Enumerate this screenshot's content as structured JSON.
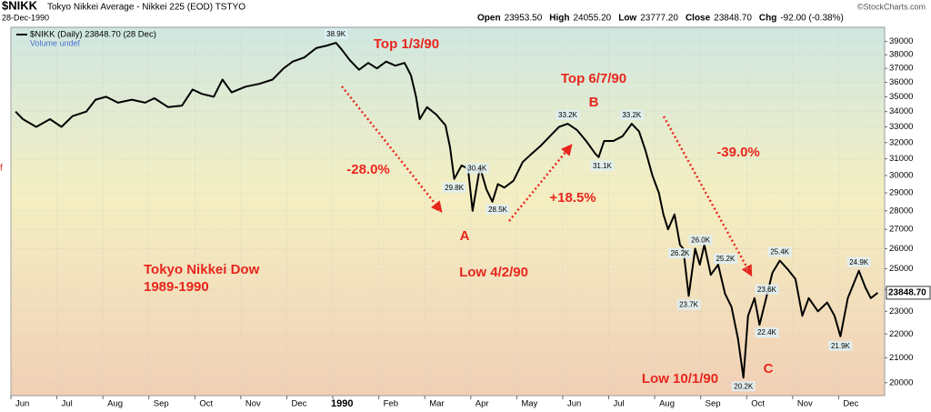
{
  "header": {
    "symbol": "$NIKK",
    "description": "Tokyo Nikkei Average - Nikkei 225 (EOD) TSTYO",
    "date": "28-Dec-1990",
    "quote": [
      {
        "label": "Open",
        "value": "23953.50"
      },
      {
        "label": "High",
        "value": "24055.20"
      },
      {
        "label": "Low",
        "value": "23777.20"
      },
      {
        "label": "Close",
        "value": "23848.70"
      },
      {
        "label": "Chg",
        "value": "-92.00 (-0.38%)"
      }
    ],
    "credit": "©StockCharts.com",
    "volume_note": "Volume undef",
    "left_marker": "f"
  },
  "chart_data": {
    "type": "line",
    "log_y": true,
    "grid": true,
    "x": [
      0.1,
      0.26,
      0.55,
      0.85,
      1.1,
      1.34,
      1.64,
      1.84,
      2.07,
      2.33,
      2.63,
      2.92,
      3.12,
      3.42,
      3.72,
      3.95,
      4.15,
      4.41,
      4.6,
      4.8,
      5.1,
      5.4,
      5.69,
      5.93,
      6.13,
      6.38,
      6.64,
      6.88,
      7.07,
      7.19,
      7.37,
      7.57,
      7.77,
      7.96,
      8.16,
      8.36,
      8.56,
      8.7,
      8.81,
      8.89,
      9.05,
      9.25,
      9.45,
      9.55,
      9.64,
      9.8,
      9.94,
      10.04,
      10.2,
      10.34,
      10.47,
      10.59,
      10.73,
      10.93,
      11.13,
      11.32,
      11.52,
      11.72,
      11.92,
      12.11,
      12.31,
      12.51,
      12.71,
      12.78,
      12.9,
      13.1,
      13.3,
      13.5,
      13.66,
      13.8,
      13.95,
      14.09,
      14.19,
      14.29,
      14.43,
      14.55,
      14.62,
      14.74,
      14.88,
      14.98,
      15.08,
      15.22,
      15.38,
      15.53,
      15.67,
      15.81,
      15.93,
      16.03,
      16.17,
      16.28,
      16.4,
      16.56,
      16.72,
      16.88,
      17.06,
      17.21,
      17.35,
      17.55,
      17.75,
      17.91,
      18.04,
      18.2,
      18.44,
      18.58,
      18.7,
      18.85
    ],
    "series": [
      {
        "name": "$NIKK (Daily) 23848.70 (28 Dec)",
        "color": "#000000",
        "values": [
          34000,
          33500,
          33000,
          33500,
          33000,
          33700,
          34000,
          34800,
          35000,
          34600,
          34800,
          34600,
          34900,
          34300,
          34400,
          35500,
          35200,
          35000,
          36200,
          35300,
          35700,
          35900,
          36200,
          37000,
          37500,
          37800,
          38500,
          38700,
          38900,
          38400,
          37600,
          36900,
          37400,
          37000,
          37500,
          37200,
          37400,
          36500,
          35000,
          33500,
          34300,
          33800,
          33100,
          31700,
          29800,
          30600,
          30400,
          28000,
          30500,
          29200,
          28500,
          29500,
          29300,
          29700,
          30800,
          31300,
          31800,
          32400,
          33000,
          33200,
          32800,
          32100,
          31300,
          31100,
          32100,
          32100,
          32400,
          33200,
          32700,
          31500,
          30000,
          29000,
          27800,
          27000,
          27800,
          26200,
          26000,
          23700,
          26000,
          25200,
          26200,
          24700,
          25200,
          23800,
          23200,
          21800,
          20200,
          22800,
          23600,
          22400,
          23400,
          24800,
          25400,
          25000,
          24500,
          22800,
          23600,
          23000,
          23400,
          22800,
          21900,
          23600,
          24900,
          24100,
          23600,
          23848.7
        ]
      }
    ],
    "xlim": [
      0,
      19
    ],
    "ylim": [
      19500,
      40100
    ],
    "xticks": [
      {
        "value": 0,
        "label": "Jun"
      },
      {
        "value": 1,
        "label": "Jul"
      },
      {
        "value": 2,
        "label": "Aug"
      },
      {
        "value": 3,
        "label": "Sep"
      },
      {
        "value": 4,
        "label": "Oct"
      },
      {
        "value": 5,
        "label": "Nov"
      },
      {
        "value": 6,
        "label": "Dec"
      },
      {
        "value": 7,
        "label": "1990"
      },
      {
        "value": 8,
        "label": "Feb"
      },
      {
        "value": 9,
        "label": "Mar"
      },
      {
        "value": 10,
        "label": "Apr"
      },
      {
        "value": 11,
        "label": "May"
      },
      {
        "value": 12,
        "label": "Jun"
      },
      {
        "value": 13,
        "label": "Jul"
      },
      {
        "value": 14,
        "label": "Aug"
      },
      {
        "value": 15,
        "label": "Sep"
      },
      {
        "value": 16,
        "label": "Oct"
      },
      {
        "value": 17,
        "label": "Nov"
      },
      {
        "value": 18,
        "label": "Dec"
      }
    ],
    "yticks": [
      20000,
      21000,
      22000,
      23000,
      24000,
      25000,
      26000,
      27000,
      28000,
      29000,
      30000,
      31000,
      32000,
      33000,
      34000,
      35000,
      36000,
      37000,
      38000,
      39000
    ],
    "point_labels": [
      {
        "label": "38.9K",
        "x": 7.07,
        "value": 38900
      },
      {
        "label": "33.2K",
        "x": 12.11,
        "value": 33200
      },
      {
        "label": "30.4K",
        "x": 9.94,
        "value": 30400
      },
      {
        "label": "29.8K",
        "x": 9.64,
        "value": 29800
      },
      {
        "label": "28.5K",
        "x": 10.47,
        "value": 28500
      },
      {
        "label": "31.1K",
        "x": 12.78,
        "value": 31100
      },
      {
        "label": "33.2K",
        "x": 13.5,
        "value": 33200
      },
      {
        "label": "26.2K",
        "x": 14.55,
        "value": 26200
      },
      {
        "label": "26.0K",
        "x": 14.88,
        "value": 26000
      },
      {
        "label": "25.2K",
        "x": 15.38,
        "value": 25200
      },
      {
        "label": "23.7K",
        "x": 14.74,
        "value": 23700
      },
      {
        "label": "23.6K",
        "x": 16.4,
        "value": 23600
      },
      {
        "label": "20.2K",
        "x": 15.93,
        "value": 20200
      },
      {
        "label": "22.4K",
        "x": 16.28,
        "value": 22400
      },
      {
        "label": "25.4K",
        "x": 16.72,
        "value": 25400
      },
      {
        "label": "21.9K",
        "x": 18.04,
        "value": 21900
      },
      {
        "label": "24.9K",
        "x": 18.44,
        "value": 24900
      }
    ],
    "annotations": [
      "Top 1/3/90",
      "-28.0%",
      "A",
      "Low 4/2/90",
      "Top 6/7/90",
      "B",
      "+18.5%",
      "-39.0%",
      "Low 10/1/90",
      "C",
      "Tokyo Nikkei Dow",
      "1989-1990"
    ],
    "annotation_color": "#e8261d"
  }
}
